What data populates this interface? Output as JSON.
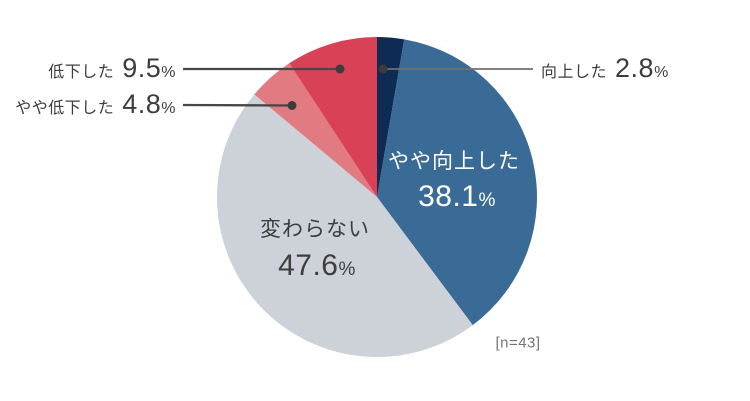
{
  "chart_data": {
    "type": "pie",
    "title": "",
    "note": "[n=43]",
    "legend": "none",
    "start_angle_deg": 0,
    "direction": "clockwise",
    "slices": [
      {
        "label": "向上した",
        "value": 2.8,
        "value_text": "2.8",
        "unit": "%",
        "color": "#0e2b53",
        "label_placement": "callout-right"
      },
      {
        "label": "やや向上した",
        "value": 38.1,
        "value_text": "38.1",
        "unit": "%",
        "color": "#3a6b96",
        "label_placement": "inside-white"
      },
      {
        "label": "変わらない",
        "value": 47.6,
        "value_text": "47.6",
        "unit": "%",
        "color": "#ccd2d8",
        "label_placement": "inside-dark"
      },
      {
        "label": "やや低下した",
        "value": 4.8,
        "value_text": "4.8",
        "unit": "%",
        "color": "#e17b81",
        "label_placement": "callout-left"
      },
      {
        "label": "低下した",
        "value": 9.5,
        "value_text": "9.5",
        "unit": "%",
        "color": "#d84156",
        "label_placement": "callout-left"
      }
    ]
  }
}
